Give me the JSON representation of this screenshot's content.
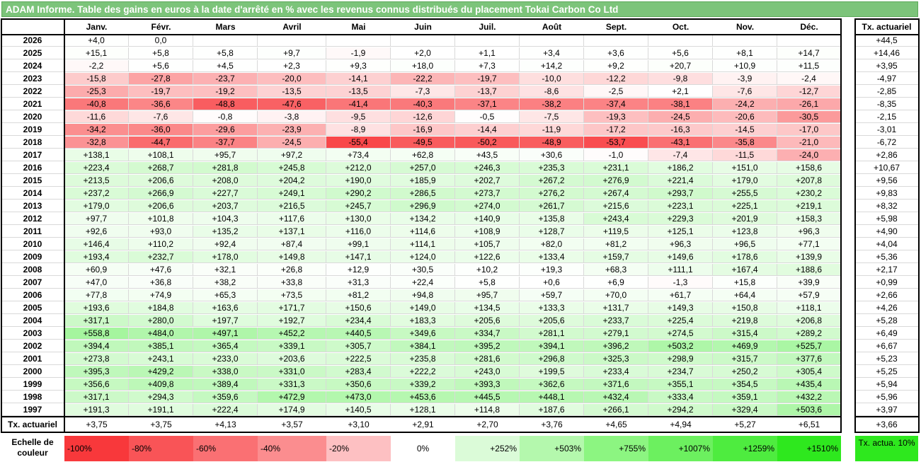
{
  "title": "ADAM Informe. Table des gains en euros à la date d'arrêté en % avec les revenus connus distribués du placement Tokai Carbon Co Ltd",
  "months": [
    "Janv.",
    "Févr.",
    "Mars",
    "Avril",
    "Mai",
    "Juin",
    "Juil.",
    "Août",
    "Sept.",
    "Oct.",
    "Nov.",
    "Déc."
  ],
  "tx_header": "Tx. actuariel",
  "rows": [
    {
      "year": "2026",
      "values": [
        "+4,0",
        "0,0",
        "",
        "",
        "",
        "",
        "",
        "",
        "",
        "",
        "",
        ""
      ],
      "tx": "+44,5"
    },
    {
      "year": "2025",
      "values": [
        "+15,1",
        "+5,8",
        "+5,8",
        "+9,7",
        "-1,9",
        "+2,0",
        "+1,1",
        "+3,4",
        "+3,6",
        "+5,6",
        "+8,1",
        "+14,7"
      ],
      "tx": "+14,46"
    },
    {
      "year": "2024",
      "values": [
        "-2,2",
        "+5,6",
        "+4,5",
        "+2,3",
        "+9,3",
        "+18,0",
        "+7,3",
        "+14,2",
        "+9,2",
        "+20,7",
        "+10,9",
        "+11,5"
      ],
      "tx": "+3,95"
    },
    {
      "year": "2023",
      "values": [
        "-15,8",
        "-27,8",
        "-23,7",
        "-20,0",
        "-14,1",
        "-22,2",
        "-19,7",
        "-10,0",
        "-12,2",
        "-9,8",
        "-3,9",
        "-2,4"
      ],
      "tx": "-4,97"
    },
    {
      "year": "2022",
      "values": [
        "-25,3",
        "-19,7",
        "-19,2",
        "-13,5",
        "-13,5",
        "-7,3",
        "-13,7",
        "-8,6",
        "-2,5",
        "+2,1",
        "-7,6",
        "-12,7"
      ],
      "tx": "-2,85"
    },
    {
      "year": "2021",
      "values": [
        "-40,8",
        "-36,6",
        "-48,8",
        "-47,6",
        "-41,4",
        "-40,3",
        "-37,1",
        "-38,2",
        "-37,4",
        "-38,1",
        "-24,2",
        "-26,1"
      ],
      "tx": "-8,35"
    },
    {
      "year": "2020",
      "values": [
        "-11,6",
        "-7,6",
        "-0,8",
        "-3,8",
        "-9,5",
        "-12,6",
        "-0,5",
        "-7,5",
        "-19,3",
        "-24,5",
        "-20,6",
        "-30,5"
      ],
      "tx": "-2,15"
    },
    {
      "year": "2019",
      "values": [
        "-34,2",
        "-36,0",
        "-29,6",
        "-23,9",
        "-8,9",
        "-16,9",
        "-14,4",
        "-11,9",
        "-17,2",
        "-16,3",
        "-14,5",
        "-17,0"
      ],
      "tx": "-3,01"
    },
    {
      "year": "2018",
      "values": [
        "-32,8",
        "-44,7",
        "-37,7",
        "-24,5",
        "-55,4",
        "-49,5",
        "-50,2",
        "-48,9",
        "-53,7",
        "-43,1",
        "-35,8",
        "-21,0"
      ],
      "tx": "-6,72"
    },
    {
      "year": "2017",
      "values": [
        "+138,1",
        "+108,1",
        "+95,7",
        "+97,2",
        "+73,4",
        "+62,8",
        "+43,5",
        "+30,6",
        "-1,0",
        "-7,4",
        "-11,5",
        "-24,0"
      ],
      "tx": "+2,86"
    },
    {
      "year": "2016",
      "values": [
        "+223,4",
        "+268,7",
        "+281,8",
        "+245,8",
        "+212,0",
        "+257,0",
        "+246,3",
        "+235,3",
        "+231,1",
        "+186,2",
        "+151,0",
        "+158,6"
      ],
      "tx": "+10,67"
    },
    {
      "year": "2015",
      "values": [
        "+213,5",
        "+206,6",
        "+208,0",
        "+204,2",
        "+190,0",
        "+185,9",
        "+202,7",
        "+267,2",
        "+276,9",
        "+221,4",
        "+179,0",
        "+207,8"
      ],
      "tx": "+9,56"
    },
    {
      "year": "2014",
      "values": [
        "+237,2",
        "+266,9",
        "+227,7",
        "+249,1",
        "+290,2",
        "+286,5",
        "+273,7",
        "+276,2",
        "+267,4",
        "+293,7",
        "+255,5",
        "+230,2"
      ],
      "tx": "+9,83"
    },
    {
      "year": "2013",
      "values": [
        "+179,0",
        "+206,6",
        "+203,7",
        "+216,5",
        "+245,7",
        "+296,9",
        "+274,0",
        "+261,7",
        "+215,6",
        "+223,1",
        "+225,1",
        "+219,1"
      ],
      "tx": "+8,32"
    },
    {
      "year": "2012",
      "values": [
        "+97,7",
        "+101,8",
        "+104,3",
        "+117,6",
        "+130,0",
        "+134,2",
        "+140,9",
        "+135,8",
        "+243,4",
        "+229,3",
        "+201,9",
        "+158,3"
      ],
      "tx": "+5,98"
    },
    {
      "year": "2011",
      "values": [
        "+92,6",
        "+93,0",
        "+135,2",
        "+137,1",
        "+116,0",
        "+114,6",
        "+108,9",
        "+128,7",
        "+119,5",
        "+125,1",
        "+123,8",
        "+96,3"
      ],
      "tx": "+4,90"
    },
    {
      "year": "2010",
      "values": [
        "+146,4",
        "+110,2",
        "+92,4",
        "+87,4",
        "+99,1",
        "+114,1",
        "+105,7",
        "+82,0",
        "+81,2",
        "+96,3",
        "+96,5",
        "+77,1"
      ],
      "tx": "+4,04"
    },
    {
      "year": "2009",
      "values": [
        "+193,4",
        "+232,7",
        "+178,0",
        "+149,8",
        "+147,1",
        "+124,0",
        "+122,6",
        "+133,4",
        "+159,7",
        "+149,6",
        "+178,6",
        "+139,9"
      ],
      "tx": "+5,36"
    },
    {
      "year": "2008",
      "values": [
        "+60,9",
        "+47,6",
        "+32,1",
        "+26,8",
        "+12,9",
        "+30,5",
        "+10,2",
        "+19,3",
        "+68,3",
        "+111,1",
        "+167,4",
        "+188,6"
      ],
      "tx": "+2,17"
    },
    {
      "year": "2007",
      "values": [
        "+47,0",
        "+36,8",
        "+38,2",
        "+33,8",
        "+31,3",
        "+22,4",
        "+5,8",
        "+0,6",
        "+6,9",
        "-1,3",
        "+15,8",
        "+39,9"
      ],
      "tx": "+0,99"
    },
    {
      "year": "2006",
      "values": [
        "+77,8",
        "+74,9",
        "+65,3",
        "+73,5",
        "+81,2",
        "+94,8",
        "+95,7",
        "+59,7",
        "+70,0",
        "+61,7",
        "+64,4",
        "+57,9"
      ],
      "tx": "+2,66"
    },
    {
      "year": "2005",
      "values": [
        "+193,6",
        "+184,8",
        "+163,6",
        "+171,7",
        "+150,6",
        "+149,0",
        "+134,5",
        "+133,3",
        "+131,7",
        "+149,3",
        "+150,8",
        "+118,1"
      ],
      "tx": "+4,26"
    },
    {
      "year": "2004",
      "values": [
        "+317,1",
        "+280,0",
        "+197,7",
        "+192,7",
        "+234,4",
        "+183,3",
        "+205,6",
        "+205,6",
        "+233,7",
        "+225,4",
        "+219,8",
        "+206,8"
      ],
      "tx": "+5,28"
    },
    {
      "year": "2003",
      "values": [
        "+558,8",
        "+484,0",
        "+497,1",
        "+452,2",
        "+440,5",
        "+349,6",
        "+334,7",
        "+281,1",
        "+279,1",
        "+274,5",
        "+315,4",
        "+289,2"
      ],
      "tx": "+6,49"
    },
    {
      "year": "2002",
      "values": [
        "+394,4",
        "+385,1",
        "+365,4",
        "+339,1",
        "+305,7",
        "+384,1",
        "+395,2",
        "+394,1",
        "+396,2",
        "+503,2",
        "+469,9",
        "+525,7"
      ],
      "tx": "+6,67"
    },
    {
      "year": "2001",
      "values": [
        "+273,8",
        "+243,1",
        "+233,0",
        "+203,6",
        "+222,5",
        "+235,8",
        "+281,6",
        "+296,8",
        "+325,3",
        "+298,9",
        "+315,7",
        "+377,6"
      ],
      "tx": "+5,23"
    },
    {
      "year": "2000",
      "values": [
        "+395,3",
        "+429,2",
        "+338,0",
        "+331,0",
        "+283,4",
        "+222,2",
        "+243,0",
        "+199,5",
        "+233,4",
        "+234,7",
        "+250,2",
        "+305,4"
      ],
      "tx": "+5,25"
    },
    {
      "year": "1999",
      "values": [
        "+356,6",
        "+409,8",
        "+389,4",
        "+331,3",
        "+350,6",
        "+339,2",
        "+393,3",
        "+362,6",
        "+371,6",
        "+355,1",
        "+354,5",
        "+435,4"
      ],
      "tx": "+5,94"
    },
    {
      "year": "1998",
      "values": [
        "+317,1",
        "+294,3",
        "+359,6",
        "+472,9",
        "+473,0",
        "+453,6",
        "+445,5",
        "+448,1",
        "+432,4",
        "+333,4",
        "+359,1",
        "+432,2"
      ],
      "tx": "+5,96"
    },
    {
      "year": "1997",
      "values": [
        "+191,3",
        "+191,1",
        "+222,4",
        "+174,9",
        "+140,5",
        "+128,1",
        "+114,8",
        "+187,6",
        "+266,1",
        "+294,2",
        "+329,4",
        "+503,6"
      ],
      "tx": "+3,97"
    }
  ],
  "footer": {
    "label": "Tx. actuariel",
    "values": [
      "+3,75",
      "+3,75",
      "+4,13",
      "+3,57",
      "+3,10",
      "+2,91",
      "+2,70",
      "+3,76",
      "+4,65",
      "+4,94",
      "+5,27",
      "+6,51"
    ],
    "tx": "+3,66"
  },
  "legend": {
    "label": "Echelle de couleur",
    "items": [
      {
        "label": "-100%",
        "color": "#f8383b"
      },
      {
        "label": "-80%",
        "color": "#f95457"
      },
      {
        "label": "-60%",
        "color": "#fa7073"
      },
      {
        "label": "-40%",
        "color": "#fb8d8f"
      },
      {
        "label": "-20%",
        "color": "#fdc0c2"
      },
      {
        "label": "0%",
        "color": "#ffffff"
      },
      {
        "label": "+252%",
        "color": "#dbfbd8"
      },
      {
        "label": "+503%",
        "color": "#b4f8ad"
      },
      {
        "label": "+755%",
        "color": "#8cf581"
      },
      {
        "label": "+1007%",
        "color": "#6cf05f"
      },
      {
        "label": "+1259%",
        "color": "#4eec3f"
      },
      {
        "label": "+1510%",
        "color": "#2ee81e"
      }
    ],
    "tx_label": "Tx. actua. 10%",
    "tx_color": "#2ee81e"
  },
  "colors": {
    "title_bg": "#7cc47a",
    "negative_max": "#f8383b",
    "positive_max": "#2ee81e"
  }
}
